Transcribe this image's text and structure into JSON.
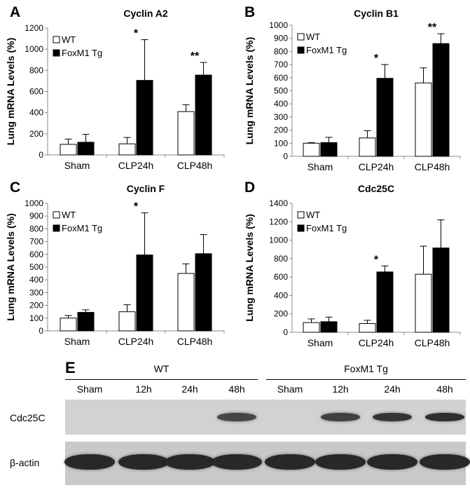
{
  "chart_data": [
    {
      "type": "bar",
      "panel_letter": "A",
      "title": "Cyclin A2",
      "ylabel": "Lung mRNA Levels (%)",
      "ylim": [
        0,
        1200
      ],
      "yticks": [
        "0",
        "200",
        "400",
        "600",
        "800",
        "1000",
        "1200"
      ],
      "categories": [
        "Sham",
        "CLP24h",
        "CLP48h"
      ],
      "legend": "upper-left",
      "series": [
        {
          "name": "WT",
          "color": "#ffffff",
          "values": [
            100,
            105,
            410
          ],
          "errors": [
            50,
            60,
            65
          ]
        },
        {
          "name": "FoxM1 Tg",
          "color": "#000000",
          "values": [
            120,
            705,
            755
          ],
          "errors": [
            75,
            385,
            120
          ]
        }
      ],
      "significance": [
        "",
        "*",
        "**"
      ]
    },
    {
      "type": "bar",
      "panel_letter": "B",
      "title": "Cyclin B1",
      "ylabel": "Lung mRNA Levels (%)",
      "ylim": [
        0,
        1000
      ],
      "yticks": [
        "0",
        "100",
        "200",
        "300",
        "400",
        "500",
        "600",
        "700",
        "800",
        "900",
        "1000"
      ],
      "categories": [
        "Sham",
        "CLP24h",
        "CLP48h"
      ],
      "legend": "upper-left",
      "series": [
        {
          "name": "WT",
          "color": "#ffffff",
          "values": [
            100,
            140,
            560
          ],
          "errors": [
            5,
            55,
            115
          ]
        },
        {
          "name": "FoxM1 Tg",
          "color": "#000000",
          "values": [
            105,
            595,
            860
          ],
          "errors": [
            40,
            105,
            75
          ]
        }
      ],
      "significance": [
        "",
        "*",
        "**"
      ]
    },
    {
      "type": "bar",
      "panel_letter": "C",
      "title": "Cyclin F",
      "ylabel": "Lung mRNA Levels (%)",
      "ylim": [
        0,
        1000
      ],
      "yticks": [
        "0",
        "100",
        "200",
        "300",
        "400",
        "500",
        "600",
        "700",
        "800",
        "900",
        "1000"
      ],
      "categories": [
        "Sham",
        "CLP24h",
        "CLP48h"
      ],
      "legend": "upper-left",
      "series": [
        {
          "name": "WT",
          "color": "#ffffff",
          "values": [
            100,
            150,
            450
          ],
          "errors": [
            20,
            55,
            75
          ]
        },
        {
          "name": "FoxM1 Tg",
          "color": "#000000",
          "values": [
            145,
            595,
            605
          ],
          "errors": [
            20,
            330,
            150
          ]
        }
      ],
      "significance": [
        "",
        "*",
        ""
      ]
    },
    {
      "type": "bar",
      "panel_letter": "D",
      "title": "Cdc25C",
      "ylabel": "Lung mRNA Levels (%)",
      "ylim": [
        0,
        1400
      ],
      "yticks": [
        "0",
        "200",
        "400",
        "600",
        "800",
        "1000",
        "1200",
        "1400"
      ],
      "categories": [
        "Sham",
        "CLP24h",
        "CLP48h"
      ],
      "legend": "upper-left",
      "series": [
        {
          "name": "WT",
          "color": "#ffffff",
          "values": [
            105,
            95,
            630
          ],
          "errors": [
            40,
            35,
            305
          ]
        },
        {
          "name": "FoxM1 Tg",
          "color": "#000000",
          "values": [
            115,
            655,
            915
          ],
          "errors": [
            50,
            65,
            305
          ]
        }
      ],
      "significance": [
        "",
        "*",
        ""
      ]
    }
  ],
  "blot": {
    "panel_letter": "E",
    "groups": [
      "WT",
      "FoxM1 Tg"
    ],
    "lanes": [
      "Sham",
      "12h",
      "24h",
      "48h",
      "Sham",
      "12h",
      "24h",
      "48h"
    ],
    "rows": [
      {
        "label": "Cdc25C",
        "band_intensity": [
          0,
          0,
          0,
          0.75,
          0,
          0.8,
          0.9,
          0.95
        ]
      },
      {
        "label": "β-actin",
        "band_intensity": [
          1,
          1,
          1,
          1,
          1,
          1,
          1,
          1
        ]
      }
    ]
  }
}
